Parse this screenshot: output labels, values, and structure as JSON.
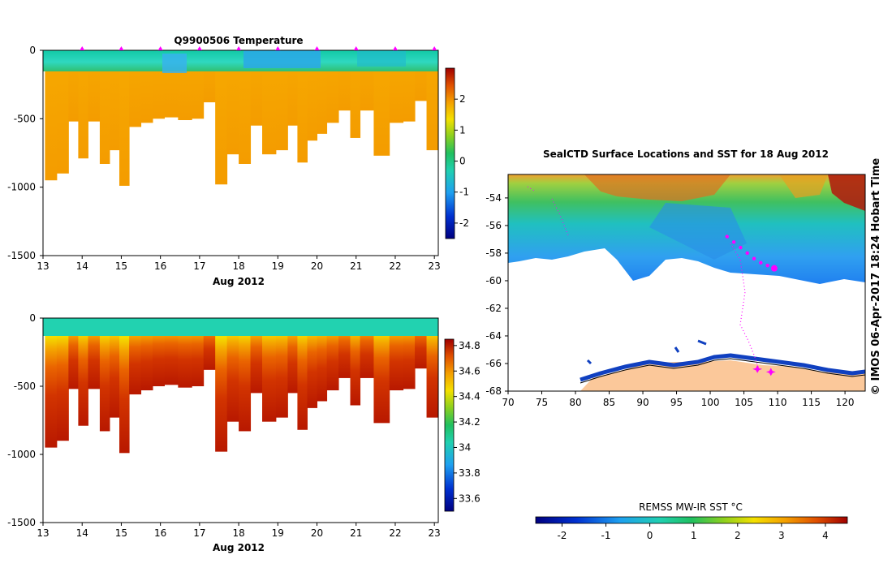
{
  "chart_data": [
    {
      "type": "heatmap",
      "title": "Q9900506  Temperature",
      "xlabel": "Aug 2012",
      "x_ticks": [
        "13",
        "14",
        "15",
        "16",
        "17",
        "18",
        "19",
        "20",
        "21",
        "22",
        "23"
      ],
      "xlim": [
        13,
        23.1
      ],
      "y_ticks": [
        "0",
        "-500",
        "-1000",
        "-1500"
      ],
      "ylim": [
        -1500,
        0
      ],
      "colorbar_ticks": [
        "2",
        "1",
        "0",
        "-1",
        "-2"
      ],
      "colorbar_range": [
        -2.5,
        3
      ],
      "profile_markers": [
        14,
        15,
        16,
        17,
        18,
        19,
        20,
        21,
        22,
        23
      ],
      "profiles": [
        {
          "t": 13.05,
          "depth": -950
        },
        {
          "t": 13.35,
          "depth": -900
        },
        {
          "t": 13.65,
          "depth": -520
        },
        {
          "t": 13.9,
          "depth": -790
        },
        {
          "t": 14.15,
          "depth": -520
        },
        {
          "t": 14.45,
          "depth": -830
        },
        {
          "t": 14.7,
          "depth": -730
        },
        {
          "t": 14.95,
          "depth": -990
        },
        {
          "t": 15.2,
          "depth": -560
        },
        {
          "t": 15.5,
          "depth": -530
        },
        {
          "t": 15.8,
          "depth": -500
        },
        {
          "t": 16.1,
          "depth": -490
        },
        {
          "t": 16.45,
          "depth": -510
        },
        {
          "t": 16.8,
          "depth": -500
        },
        {
          "t": 17.1,
          "depth": -380
        },
        {
          "t": 17.4,
          "depth": -980
        },
        {
          "t": 17.7,
          "depth": -760
        },
        {
          "t": 18.0,
          "depth": -830
        },
        {
          "t": 18.3,
          "depth": -550
        },
        {
          "t": 18.6,
          "depth": -760
        },
        {
          "t": 18.95,
          "depth": -730
        },
        {
          "t": 19.25,
          "depth": -550
        },
        {
          "t": 19.5,
          "depth": -820
        },
        {
          "t": 19.75,
          "depth": -660
        },
        {
          "t": 20.0,
          "depth": -610
        },
        {
          "t": 20.25,
          "depth": -530
        },
        {
          "t": 20.55,
          "depth": -440
        },
        {
          "t": 20.85,
          "depth": -640
        },
        {
          "t": 21.1,
          "depth": -440
        },
        {
          "t": 21.45,
          "depth": -770
        },
        {
          "t": 21.85,
          "depth": -530
        },
        {
          "t": 22.2,
          "depth": -520
        },
        {
          "t": 22.5,
          "depth": -370
        },
        {
          "t": 22.8,
          "depth": -730
        }
      ]
    },
    {
      "type": "heatmap",
      "title": "",
      "xlabel": "Aug 2012",
      "x_ticks": [
        "13",
        "14",
        "15",
        "16",
        "17",
        "18",
        "19",
        "20",
        "21",
        "22",
        "23"
      ],
      "xlim": [
        13,
        23.1
      ],
      "y_ticks": [
        "0",
        "-500",
        "-1000",
        "-1500"
      ],
      "ylim": [
        -1500,
        0
      ],
      "colorbar_ticks": [
        "34.8",
        "34.6",
        "34.4",
        "34.2",
        "34",
        "33.8",
        "33.6"
      ],
      "colorbar_range": [
        33.5,
        34.85
      ]
    },
    {
      "type": "heatmap",
      "title": "SealCTD Surface Locations and SST for 18 Aug 2012",
      "x_ticks": [
        "70",
        "75",
        "80",
        "85",
        "90",
        "95",
        "100",
        "105",
        "110",
        "115",
        "120"
      ],
      "xlim": [
        70,
        123
      ],
      "y_ticks": [
        "-54",
        "-56",
        "-58",
        "-60",
        "-62",
        "-64",
        "-66",
        "-68"
      ],
      "ylim": [
        -68,
        -52.3
      ],
      "colorbar_label": "REMSS MW-IR SST °C",
      "colorbar_ticks": [
        "-2",
        "-1",
        "0",
        "1",
        "2",
        "3",
        "4"
      ],
      "colorbar_range": [
        -2.6,
        4.5
      ],
      "track": [
        {
          "lon": 102.5,
          "lat": -56.8
        },
        {
          "lon": 103.5,
          "lat": -57.2
        },
        {
          "lon": 104.5,
          "lat": -57.6
        },
        {
          "lon": 105.5,
          "lat": -58.0
        },
        {
          "lon": 106.5,
          "lat": -58.4
        },
        {
          "lon": 107.5,
          "lat": -58.7
        },
        {
          "lon": 108.5,
          "lat": -58.9
        },
        {
          "lon": 109.5,
          "lat": -59.1
        }
      ],
      "current_location": {
        "lon": 109.5,
        "lat": -59.1
      },
      "coastal_markers": [
        {
          "lon": 107,
          "lat": -66.4
        },
        {
          "lon": 109,
          "lat": -66.6
        }
      ]
    }
  ],
  "credit": "© IMOS 06-Apr-2017 18:24 Hobart Time"
}
